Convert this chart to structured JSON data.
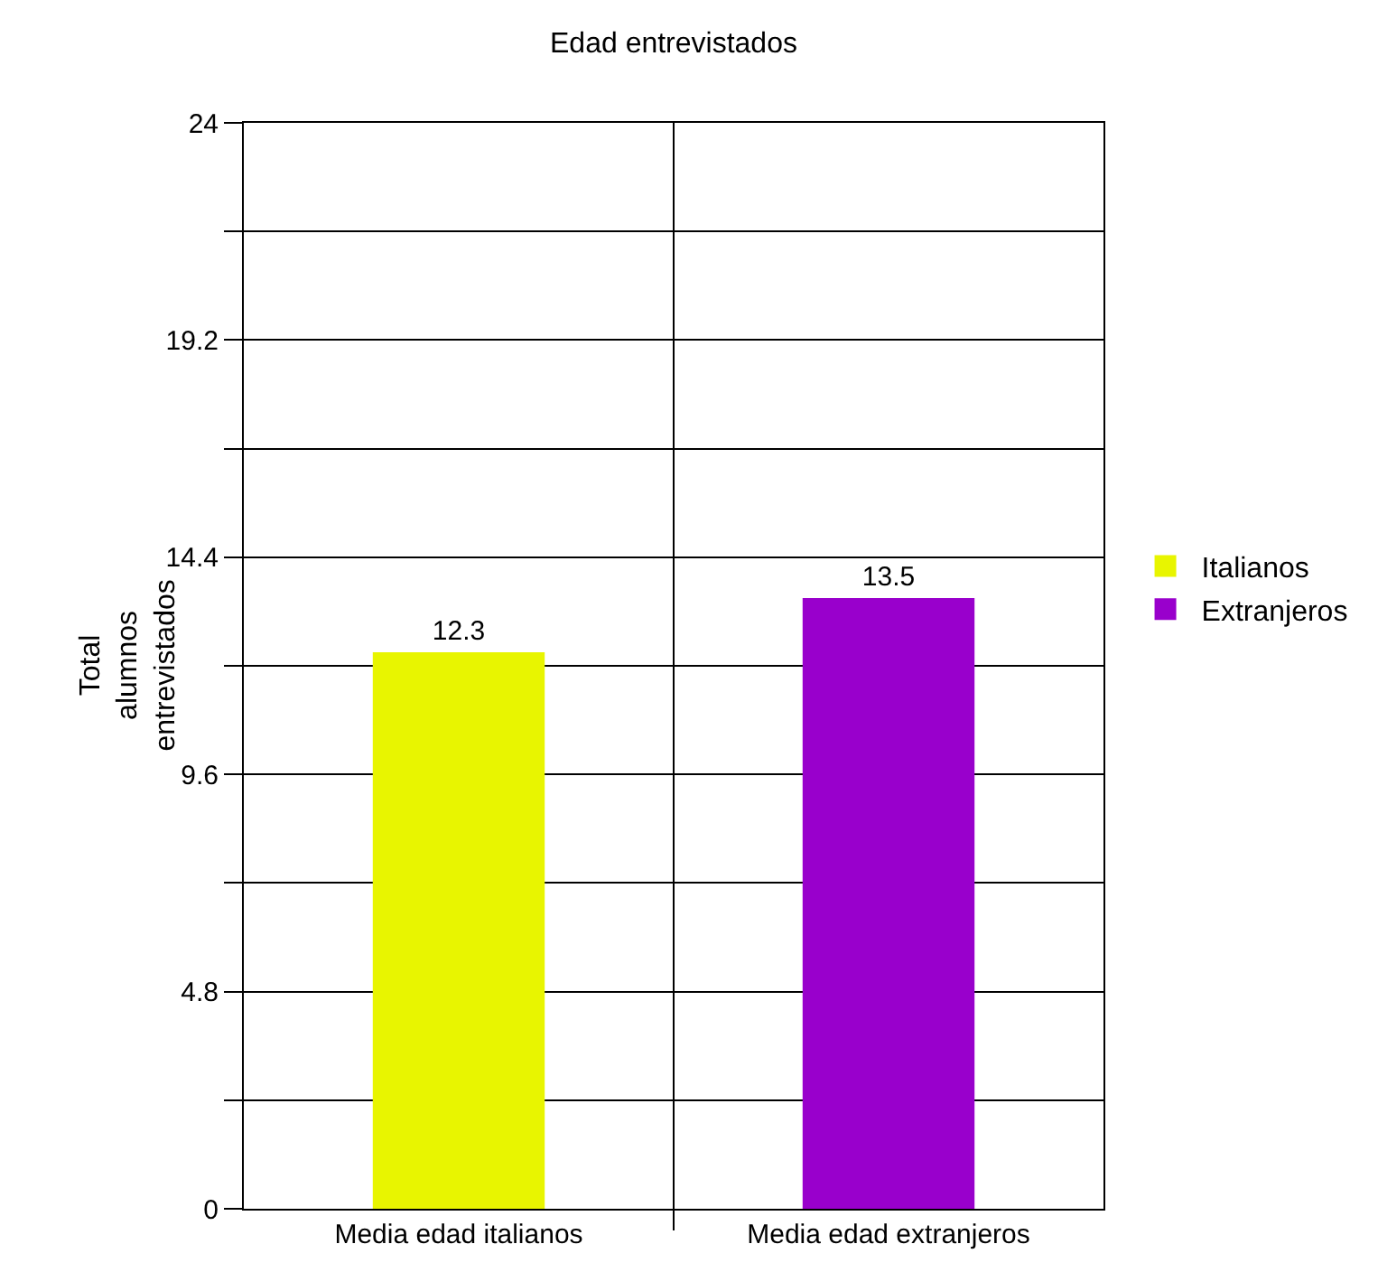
{
  "chart_data": {
    "type": "bar",
    "title": "Edad entrevistados",
    "ylabel": "Total alumnos entrevistados",
    "categories": [
      "Media edad italianos",
      "Media edad extranjeros"
    ],
    "series": [
      {
        "name": "Italianos",
        "color": "#e8f500",
        "values": [
          12.3,
          null
        ]
      },
      {
        "name": "Extranjeros",
        "color": "#9900cc",
        "values": [
          null,
          13.5
        ]
      }
    ],
    "ylim": [
      0,
      24
    ],
    "yticks": [
      0,
      {
        "value": 2.4,
        "label": null
      },
      4.8,
      {
        "value": 7.2,
        "label": null
      },
      9.6,
      {
        "value": 12.0,
        "label": null
      },
      14.4,
      {
        "value": 16.8,
        "label": null
      },
      19.2,
      {
        "value": 21.6,
        "label": null
      },
      24
    ],
    "grid": true,
    "data_labels": true,
    "legend": "right"
  }
}
